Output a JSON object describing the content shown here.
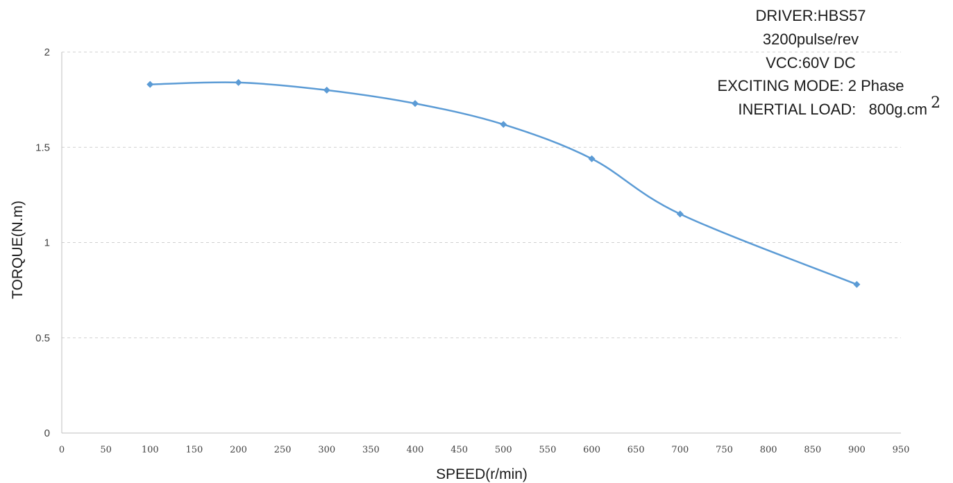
{
  "chart_data": {
    "type": "line",
    "title": "",
    "xlabel": "SPEED(r/min)",
    "ylabel": "TORQUE(N.m)",
    "xlim": [
      0,
      950
    ],
    "ylim": [
      0,
      2
    ],
    "x_ticks": [
      "0",
      "50",
      "100",
      "150",
      "200",
      "250",
      "300",
      "350",
      "400",
      "450",
      "500",
      "550",
      "600",
      "650",
      "700",
      "750",
      "800",
      "850",
      "900",
      "950"
    ],
    "y_ticks": [
      "0",
      "0.5",
      "1",
      "1.5",
      "2"
    ],
    "grid": "horizontal dashed",
    "legend": "none",
    "series": [
      {
        "x": [
          100,
          200,
          300,
          400,
          500,
          600,
          700,
          900
        ],
        "y": [
          1.83,
          1.84,
          1.8,
          1.73,
          1.62,
          1.44,
          1.15,
          0.78
        ],
        "color": "#5b9bd5",
        "marker": "diamond",
        "smooth": true
      }
    ],
    "annotations": [
      "DRIVER:HBS57",
      "3200pulse/rev",
      "VCC:60V DC",
      "EXCITING MODE: 2 Phase",
      "INERTIAL LOAD:   800g.cm"
    ],
    "annotation_superscript": "2"
  }
}
